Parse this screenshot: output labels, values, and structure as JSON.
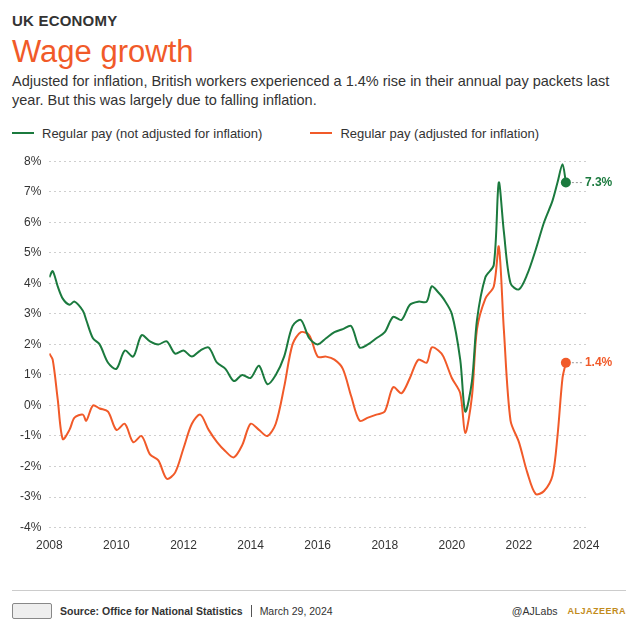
{
  "chart_data": {
    "type": "line",
    "kicker": "UK ECONOMY",
    "title": "Wage growth",
    "subtitle": "Adjusted for inflation, British workers experienced a 1.4% rise in their annual pay packets last year. But this was largely due to falling inflation.",
    "x": [
      2008.0,
      2008.1,
      2008.25,
      2008.4,
      2008.6,
      2008.75,
      2009.0,
      2009.1,
      2009.3,
      2009.5,
      2009.75,
      2010.0,
      2010.25,
      2010.5,
      2010.75,
      2011.0,
      2011.25,
      2011.5,
      2011.75,
      2012.0,
      2012.25,
      2012.5,
      2012.75,
      2013.0,
      2013.25,
      2013.5,
      2013.75,
      2014.0,
      2014.25,
      2014.5,
      2014.75,
      2015.0,
      2015.25,
      2015.5,
      2015.75,
      2016.0,
      2016.25,
      2016.5,
      2016.75,
      2017.0,
      2017.25,
      2017.5,
      2017.75,
      2018.0,
      2018.25,
      2018.5,
      2018.75,
      2019.0,
      2019.25,
      2019.4,
      2019.6,
      2019.75,
      2020.0,
      2020.25,
      2020.4,
      2020.6,
      2020.75,
      2021.0,
      2021.25,
      2021.4,
      2021.55,
      2021.75,
      2022.0,
      2022.25,
      2022.5,
      2022.75,
      2023.0,
      2023.15,
      2023.3,
      2023.4
    ],
    "series": [
      {
        "name": "Regular pay (not adjusted for inflation)",
        "color": "#1b7a3e",
        "values": [
          4.2,
          4.4,
          3.9,
          3.5,
          3.3,
          3.4,
          3.1,
          2.8,
          2.2,
          2.0,
          1.4,
          1.2,
          1.8,
          1.6,
          2.3,
          2.1,
          2.0,
          2.1,
          1.7,
          1.8,
          1.6,
          1.8,
          1.9,
          1.4,
          1.2,
          0.8,
          1.0,
          0.9,
          1.3,
          0.7,
          1.0,
          1.6,
          2.6,
          2.8,
          2.2,
          2.0,
          2.2,
          2.4,
          2.5,
          2.6,
          1.9,
          2.0,
          2.2,
          2.4,
          2.9,
          2.8,
          3.3,
          3.4,
          3.4,
          3.9,
          3.7,
          3.5,
          3.0,
          1.5,
          -0.2,
          0.8,
          2.8,
          4.2,
          4.6,
          7.3,
          5.7,
          4.0,
          3.8,
          4.3,
          5.1,
          6.0,
          6.7,
          7.3,
          7.9,
          7.3
        ]
      },
      {
        "name": "Regular pay (adjusted for inflation)",
        "color": "#f15a29",
        "values": [
          1.7,
          1.5,
          0.2,
          -1.1,
          -0.8,
          -0.4,
          -0.3,
          -0.5,
          0.0,
          -0.1,
          -0.2,
          -0.8,
          -0.6,
          -1.2,
          -1.0,
          -1.6,
          -1.8,
          -2.4,
          -2.2,
          -1.4,
          -0.6,
          -0.3,
          -0.8,
          -1.2,
          -1.5,
          -1.7,
          -1.3,
          -0.6,
          -0.8,
          -1.0,
          -0.6,
          0.6,
          2.0,
          2.4,
          2.3,
          1.6,
          1.6,
          1.5,
          1.2,
          0.3,
          -0.5,
          -0.4,
          -0.3,
          -0.2,
          0.6,
          0.4,
          0.9,
          1.5,
          1.4,
          1.9,
          1.8,
          1.6,
          0.9,
          0.4,
          -0.9,
          0.3,
          2.5,
          3.5,
          3.9,
          5.2,
          2.5,
          -0.5,
          -1.2,
          -2.2,
          -2.9,
          -2.8,
          -2.3,
          -1.0,
          0.9,
          1.4
        ]
      }
    ],
    "xlim": [
      2008,
      2024
    ],
    "xticks": [
      2008,
      2010,
      2012,
      2014,
      2016,
      2018,
      2020,
      2022,
      2024
    ],
    "ylim": [
      -4,
      8
    ],
    "yticks": [
      {
        "value": -4,
        "label": "-4%"
      },
      {
        "value": -3,
        "label": "-3%"
      },
      {
        "value": -2,
        "label": "-2%"
      },
      {
        "value": -1,
        "label": "-1%"
      },
      {
        "value": 0,
        "label": "0%"
      },
      {
        "value": 1,
        "label": "1%"
      },
      {
        "value": 2,
        "label": "2%"
      },
      {
        "value": 3,
        "label": "3%"
      },
      {
        "value": 4,
        "label": "4%"
      },
      {
        "value": 5,
        "label": "5%"
      },
      {
        "value": 6,
        "label": "6%"
      },
      {
        "value": 7,
        "label": "7%"
      },
      {
        "value": 8,
        "label": "8%"
      }
    ],
    "grid": true,
    "legend": "top-left",
    "annotations": [
      {
        "text": "7.3%",
        "x": 2023.4,
        "y": 7.3,
        "color": "#1b7a3e"
      },
      {
        "text": "1.4%",
        "x": 2023.4,
        "y": 1.4,
        "color": "#f15a29"
      }
    ],
    "source": "Source: Office for National Statistics",
    "date": "March 29, 2024",
    "credit": "@AJLabs",
    "logo": "ALJAZEERA"
  }
}
